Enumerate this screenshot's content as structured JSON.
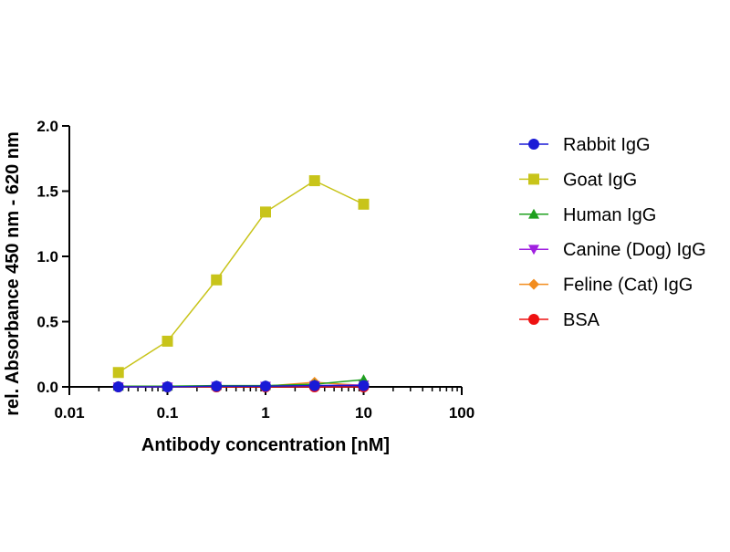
{
  "chart_data": {
    "type": "line",
    "xlabel": "Antibody concentration [nM]",
    "ylabel": "rel. Absorbance 450 nm - 620 nm",
    "xscale": "log",
    "xlim": [
      0.01,
      100
    ],
    "ylim": [
      0,
      2
    ],
    "xticks": [
      {
        "value": 0.01,
        "label": "0.01"
      },
      {
        "value": 0.1,
        "label": "0.1"
      },
      {
        "value": 1,
        "label": "1"
      },
      {
        "value": 10,
        "label": "10"
      },
      {
        "value": 100,
        "label": "100"
      }
    ],
    "yticks": [
      {
        "value": 0,
        "label": "0.0"
      },
      {
        "value": 0.5,
        "label": "0.5"
      },
      {
        "value": 1,
        "label": "1.0"
      },
      {
        "value": 1.5,
        "label": "1.5"
      },
      {
        "value": 2,
        "label": "2.0"
      }
    ],
    "grid": false,
    "legend_position": "right",
    "x": [
      0.0316,
      0.1,
      0.316,
      1,
      3.16,
      10
    ],
    "series": [
      {
        "name": "Goat IgG",
        "color": "#c8c41a",
        "marker": "square",
        "values": [
          0.11,
          0.35,
          0.82,
          1.34,
          1.58,
          1.4
        ]
      },
      {
        "name": "Feline (Cat) IgG",
        "color": "#f28c1e",
        "marker": "diamond",
        "values": [
          0.0,
          0.0,
          0.0,
          0.005,
          0.035,
          0.01
        ]
      },
      {
        "name": "Canine (Dog) IgG",
        "color": "#a020e0",
        "marker": "triangle-down",
        "values": [
          0.0,
          0.0,
          0.005,
          0.005,
          0.01,
          0.015
        ]
      },
      {
        "name": "Human IgG",
        "color": "#1fa01f",
        "marker": "triangle-up",
        "values": [
          0.005,
          0.005,
          0.01,
          0.01,
          0.02,
          0.055
        ]
      },
      {
        "name": "BSA",
        "color": "#ee1111",
        "marker": "circle",
        "values": [
          0.0,
          0.0,
          0.0,
          0.0,
          0.0,
          0.0
        ]
      },
      {
        "name": "Rabbit IgG",
        "color": "#1a1ad6",
        "marker": "circle",
        "values": [
          0.0,
          0.0,
          0.005,
          0.005,
          0.01,
          0.01
        ]
      }
    ],
    "legend_order": [
      "Rabbit IgG",
      "Goat IgG",
      "Human IgG",
      "Canine (Dog) IgG",
      "Feline (Cat) IgG",
      "BSA"
    ]
  }
}
